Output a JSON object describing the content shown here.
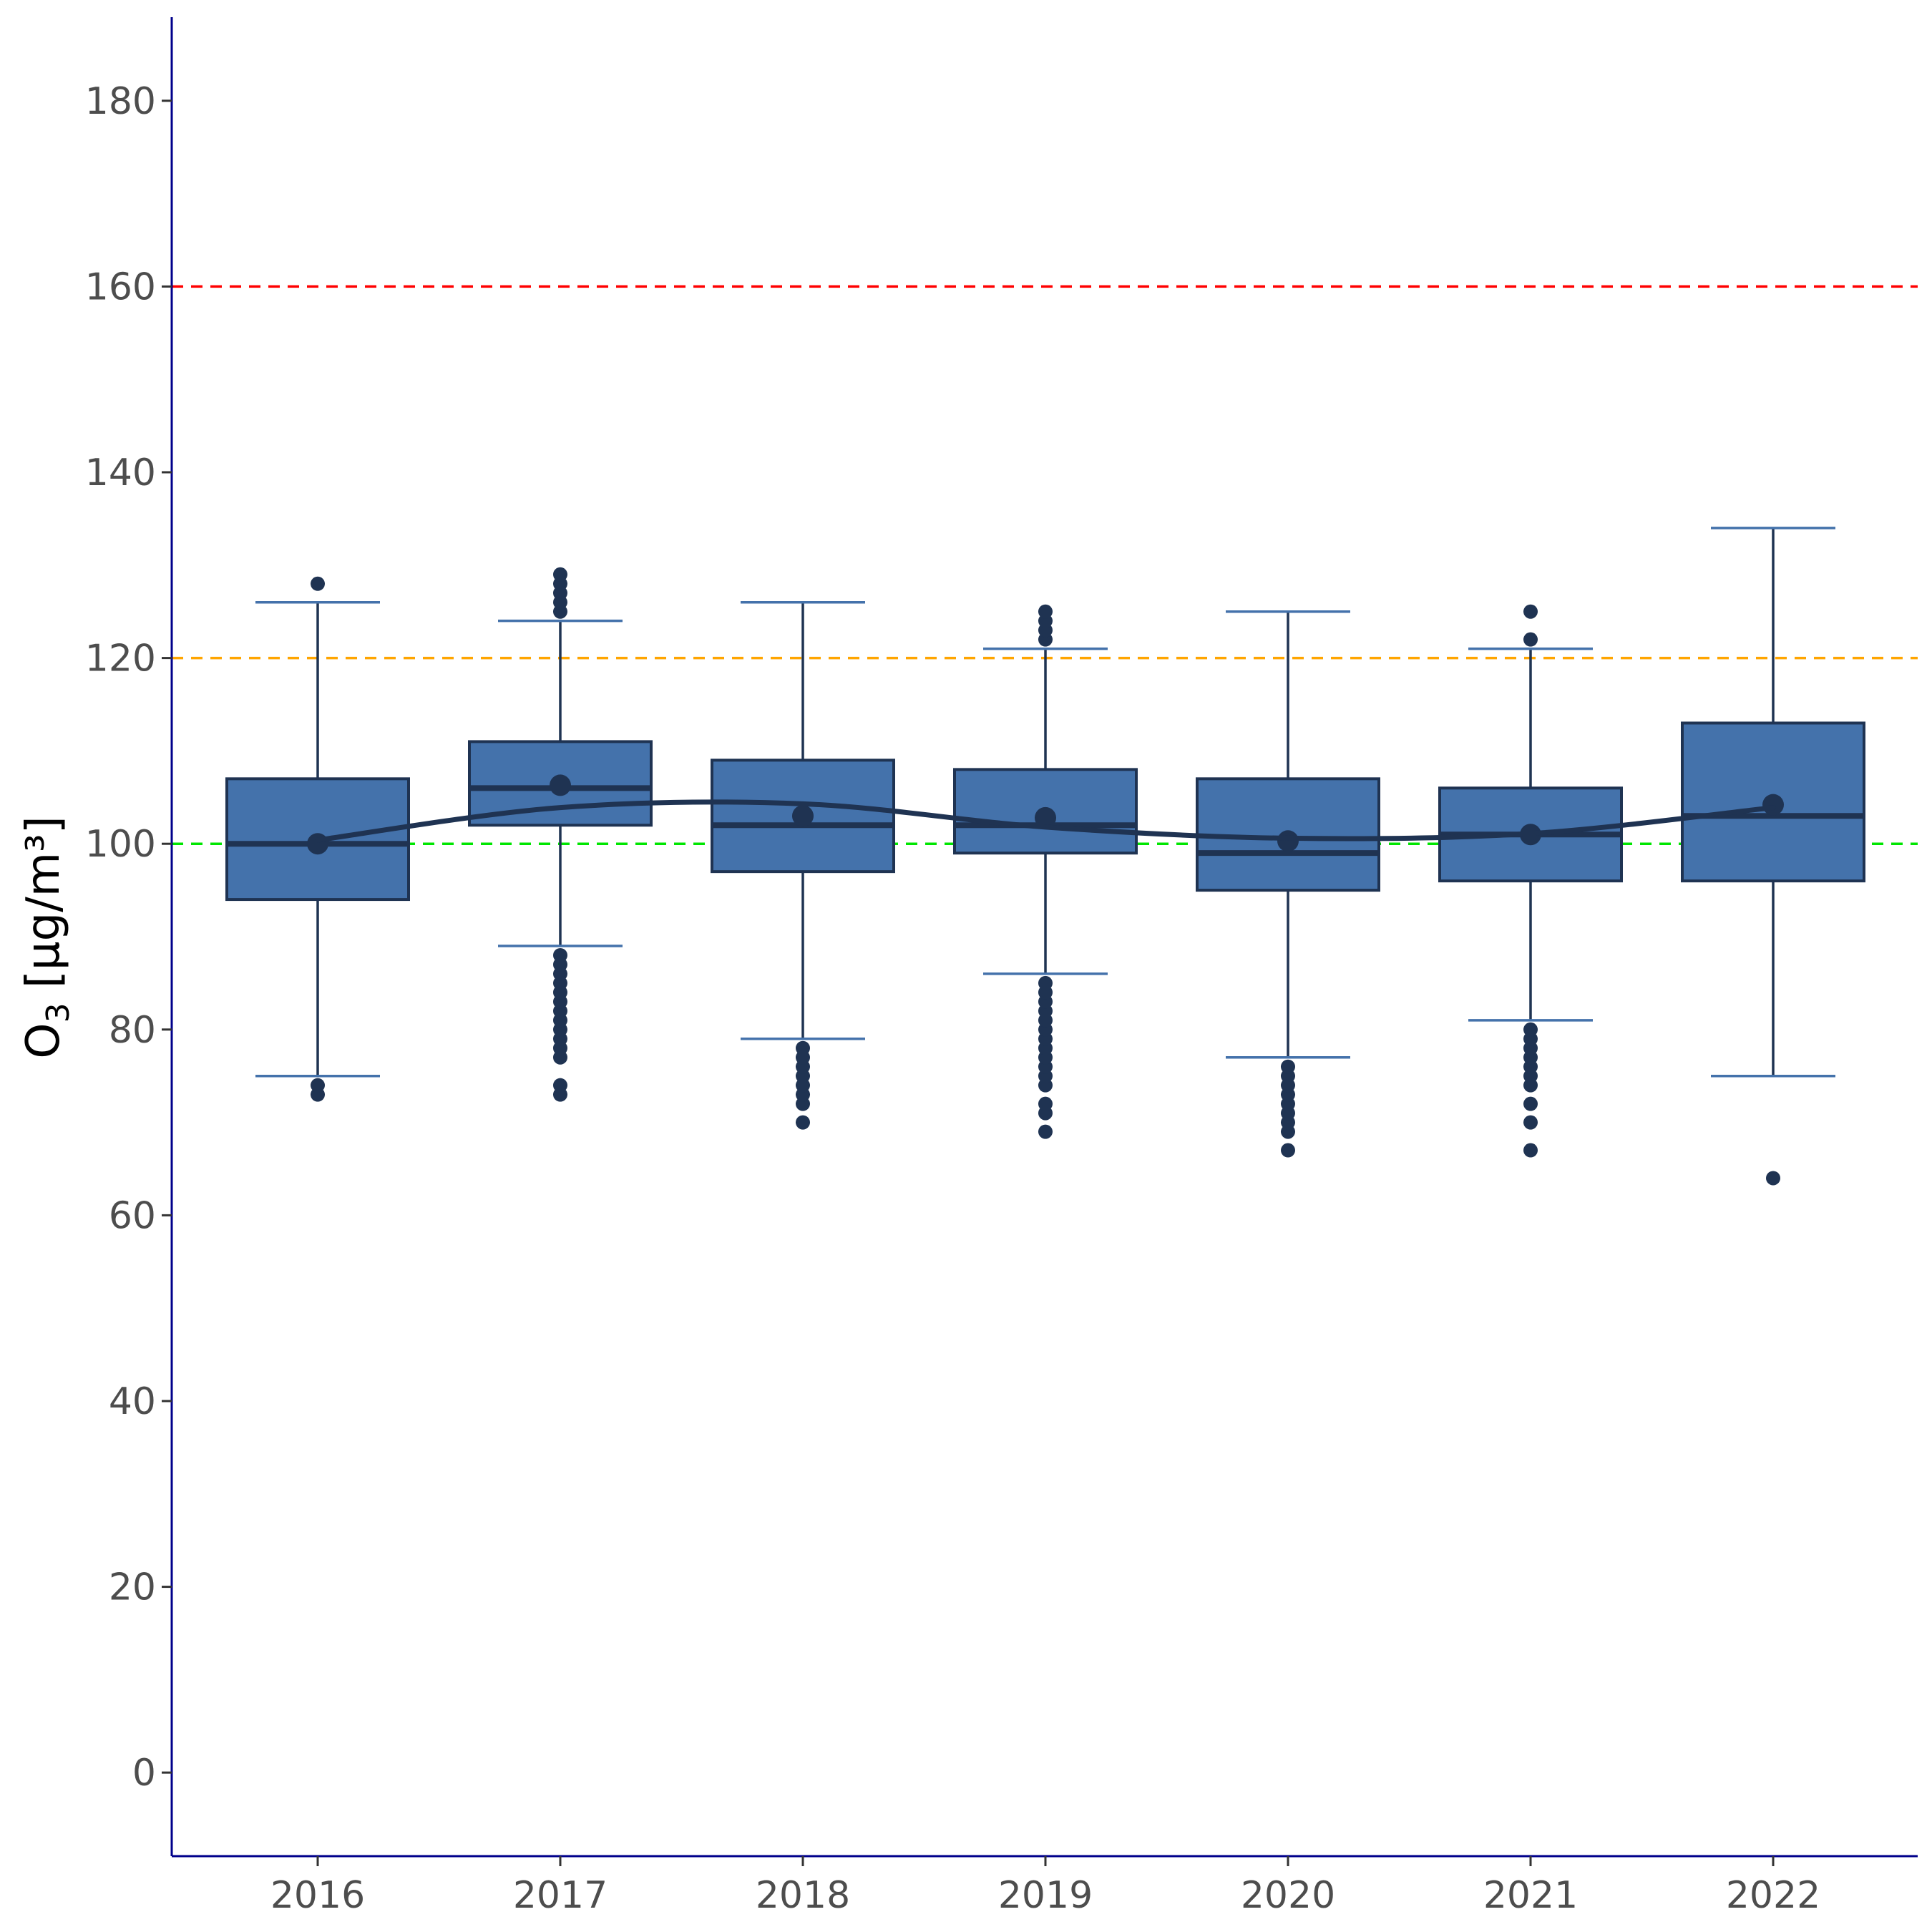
{
  "chart_data": {
    "type": "box",
    "categories": [
      "2016",
      "2017",
      "2018",
      "2019",
      "2020",
      "2021",
      "2022"
    ],
    "ylabel": {
      "main": "O",
      "subscript": "3",
      "unit": " [µg/m³]"
    },
    "xlabel": "",
    "ylim": [
      -9,
      189
    ],
    "yticks": [
      0,
      20,
      40,
      60,
      80,
      100,
      120,
      140,
      160,
      180
    ],
    "grid": false,
    "boxes": [
      {
        "category": "2016",
        "q1": 94,
        "median": 100,
        "q3": 107,
        "whisker_low": 75,
        "whisker_high": 126,
        "mean": 100,
        "outliers": [
          73,
          74,
          128
        ]
      },
      {
        "category": "2017",
        "q1": 102,
        "median": 106,
        "q3": 111,
        "whisker_low": 89,
        "whisker_high": 124,
        "mean": 106.3,
        "outliers": [
          73,
          74,
          77,
          78,
          79,
          80,
          81,
          82,
          83,
          84,
          85,
          86,
          87,
          88,
          125,
          126,
          127,
          128,
          129
        ]
      },
      {
        "category": "2018",
        "q1": 97,
        "median": 102,
        "q3": 109,
        "whisker_low": 79,
        "whisker_high": 126,
        "mean": 103,
        "outliers": [
          70,
          72,
          73,
          74,
          75,
          76,
          77,
          78
        ]
      },
      {
        "category": "2019",
        "q1": 99,
        "median": 102,
        "q3": 108,
        "whisker_low": 86,
        "whisker_high": 121,
        "mean": 102.8,
        "outliers": [
          69,
          71,
          72,
          74,
          75,
          76,
          77,
          78,
          79,
          80,
          81,
          82,
          83,
          84,
          85,
          122,
          123,
          124,
          125
        ]
      },
      {
        "category": "2020",
        "q1": 95,
        "median": 99,
        "q3": 107,
        "whisker_low": 77,
        "whisker_high": 125,
        "mean": 100.3,
        "outliers": [
          67,
          69,
          70,
          71,
          72,
          73,
          74,
          75,
          76
        ]
      },
      {
        "category": "2021",
        "q1": 96,
        "median": 101,
        "q3": 106,
        "whisker_low": 81,
        "whisker_high": 121,
        "mean": 101,
        "outliers": [
          67,
          70,
          72,
          74,
          75,
          76,
          77,
          78,
          79,
          80,
          122,
          125
        ]
      },
      {
        "category": "2022",
        "q1": 96,
        "median": 103,
        "q3": 113,
        "whisker_low": 75,
        "whisker_high": 134,
        "mean": 104.2,
        "outliers": [
          64
        ]
      }
    ],
    "trend_line": {
      "type": "smooth",
      "x": [
        "2016",
        "2017",
        "2018",
        "2019",
        "2020",
        "2021",
        "2022"
      ],
      "y": [
        100.4,
        103.9,
        104.3,
        101.8,
        100.6,
        101.1,
        103.9
      ]
    },
    "reference_lines": [
      {
        "y": 160,
        "color": "#ff0000",
        "style": "dashed"
      },
      {
        "y": 120,
        "color": "#ffa500",
        "style": "dashed"
      },
      {
        "y": 100,
        "color": "#00e600",
        "style": "dashed"
      }
    ],
    "colors": {
      "box_fill": "#4472ab",
      "box_stroke": "#1f3352",
      "whisker_cap": "#4472ab",
      "axis": "#00008b",
      "points": "#1f3352"
    }
  }
}
